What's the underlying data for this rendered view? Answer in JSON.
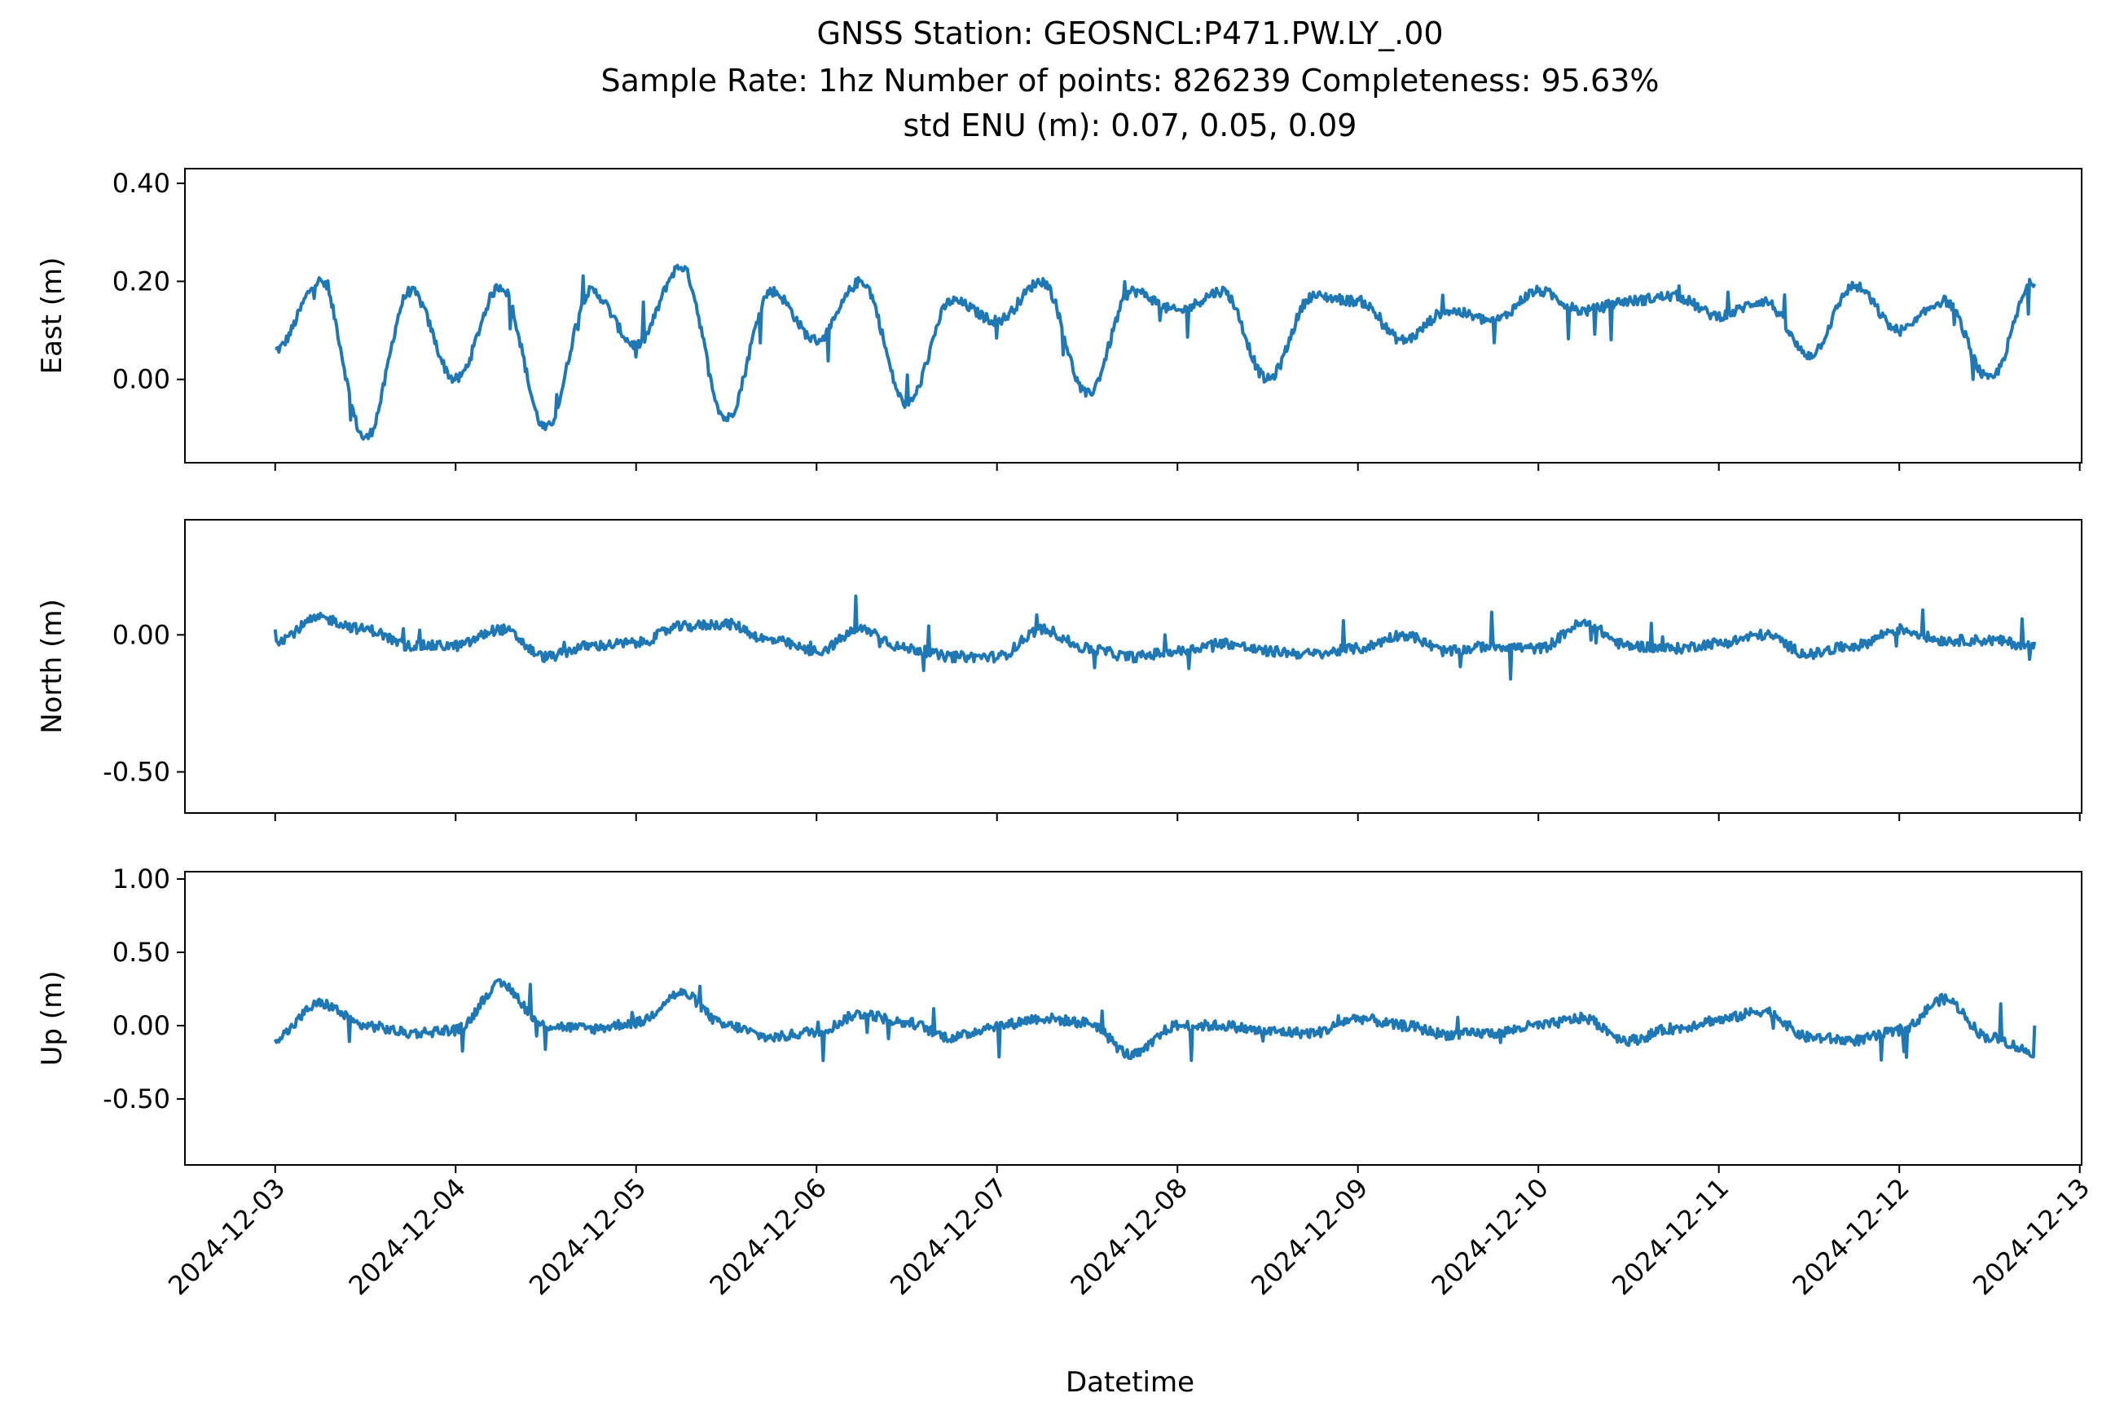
{
  "chart_data": {
    "type": "line",
    "title_lines": [
      "GNSS Station: GEOSNCL:P471.PW.LY_.00",
      "Sample Rate: 1hz   Number of points: 826239    Completeness:  95.63%",
      "std ENU (m):  0.07, 0.05, 0.09"
    ],
    "xlabel": "Datetime",
    "x_ticks": [
      "2024-12-03",
      "2024-12-04",
      "2024-12-05",
      "2024-12-06",
      "2024-12-07",
      "2024-12-08",
      "2024-12-09",
      "2024-12-10",
      "2024-12-11",
      "2024-12-12",
      "2024-12-13"
    ],
    "xlim": [
      "2024-12-02T12:00",
      "2024-12-13T00:15"
    ],
    "x_data_range": [
      "2024-12-03T00:00",
      "2024-12-12T18:00"
    ],
    "line_color": "#1f77b4",
    "grid": false,
    "legend": "none",
    "panels": [
      {
        "ylabel": "East (m)",
        "ylim": [
          -0.17,
          0.43
        ],
        "y_ticks": [
          {
            "value": 0.4,
            "label": "0.40"
          },
          {
            "value": 0.2,
            "label": "0.20"
          },
          {
            "value": 0.0,
            "label": "0.00"
          }
        ],
        "series": [
          {
            "x": [
              "2024-12-03T00:00",
              "2024-12-03T06:00",
              "2024-12-03T12:00",
              "2024-12-03T18:00",
              "2024-12-04T00:00",
              "2024-12-04T06:00",
              "2024-12-04T12:00",
              "2024-12-04T18:00",
              "2024-12-05T00:00",
              "2024-12-05T06:00",
              "2024-12-05T12:00",
              "2024-12-05T18:00",
              "2024-12-06T00:00",
              "2024-12-06T06:00",
              "2024-12-06T12:00",
              "2024-12-06T18:00",
              "2024-12-07T00:00",
              "2024-12-07T06:00",
              "2024-12-07T12:00",
              "2024-12-07T18:00",
              "2024-12-08T00:00",
              "2024-12-08T06:00",
              "2024-12-08T12:00",
              "2024-12-08T18:00",
              "2024-12-09T00:00",
              "2024-12-09T06:00",
              "2024-12-09T12:00",
              "2024-12-09T18:00",
              "2024-12-10T00:00",
              "2024-12-10T06:00",
              "2024-12-10T12:00",
              "2024-12-10T18:00",
              "2024-12-11T00:00",
              "2024-12-11T06:00",
              "2024-12-11T12:00",
              "2024-12-11T18:00",
              "2024-12-12T00:00",
              "2024-12-12T06:00",
              "2024-12-12T12:00",
              "2024-12-12T18:00"
            ],
            "y": [
              0.06,
              0.2,
              -0.12,
              0.18,
              0.0,
              0.19,
              -0.1,
              0.18,
              0.07,
              0.23,
              -0.08,
              0.18,
              0.08,
              0.2,
              -0.05,
              0.16,
              0.12,
              0.2,
              -0.03,
              0.18,
              0.14,
              0.18,
              0.0,
              0.17,
              0.16,
              0.08,
              0.14,
              0.12,
              0.18,
              0.14,
              0.16,
              0.17,
              0.13,
              0.16,
              0.05,
              0.19,
              0.1,
              0.16,
              0.0,
              0.2
            ]
          }
        ]
      },
      {
        "ylabel": "North (m)",
        "ylim": [
          -0.65,
          0.42
        ],
        "y_ticks": [
          {
            "value": 0.0,
            "label": "0.00"
          },
          {
            "value": -0.5,
            "label": "-0.50"
          }
        ],
        "series": [
          {
            "x": [
              "2024-12-03T00:00",
              "2024-12-03T06:00",
              "2024-12-03T12:00",
              "2024-12-03T18:00",
              "2024-12-04T00:00",
              "2024-12-04T06:00",
              "2024-12-04T12:00",
              "2024-12-04T18:00",
              "2024-12-05T00:00",
              "2024-12-05T06:00",
              "2024-12-05T12:00",
              "2024-12-05T18:00",
              "2024-12-06T00:00",
              "2024-12-06T06:00",
              "2024-12-06T12:00",
              "2024-12-06T18:00",
              "2024-12-07T00:00",
              "2024-12-07T06:00",
              "2024-12-07T12:00",
              "2024-12-07T18:00",
              "2024-12-08T00:00",
              "2024-12-08T06:00",
              "2024-12-08T12:00",
              "2024-12-08T18:00",
              "2024-12-09T00:00",
              "2024-12-09T06:00",
              "2024-12-09T12:00",
              "2024-12-09T18:00",
              "2024-12-10T00:00",
              "2024-12-10T06:00",
              "2024-12-10T12:00",
              "2024-12-10T18:00",
              "2024-12-11T00:00",
              "2024-12-11T06:00",
              "2024-12-11T12:00",
              "2024-12-11T18:00",
              "2024-12-12T00:00",
              "2024-12-12T06:00",
              "2024-12-12T12:00",
              "2024-12-12T18:00"
            ],
            "y": [
              -0.02,
              0.06,
              0.02,
              -0.04,
              -0.04,
              0.02,
              -0.08,
              -0.04,
              -0.03,
              0.03,
              0.04,
              -0.02,
              -0.06,
              0.02,
              -0.05,
              -0.08,
              -0.08,
              0.02,
              -0.05,
              -0.08,
              -0.06,
              -0.03,
              -0.06,
              -0.07,
              -0.05,
              0.0,
              -0.06,
              -0.04,
              -0.05,
              0.04,
              -0.04,
              -0.05,
              -0.03,
              0.0,
              -0.07,
              -0.04,
              0.02,
              -0.02,
              -0.02,
              -0.04
            ]
          }
        ]
      },
      {
        "ylabel": "Up (m)",
        "ylim": [
          -0.95,
          1.05
        ],
        "y_ticks": [
          {
            "value": 1.0,
            "label": "1.00"
          },
          {
            "value": 0.5,
            "label": "0.50"
          },
          {
            "value": 0.0,
            "label": "0.00"
          },
          {
            "value": -0.5,
            "label": "-0.50"
          }
        ],
        "series": [
          {
            "x": [
              "2024-12-03T00:00",
              "2024-12-03T06:00",
              "2024-12-03T12:00",
              "2024-12-03T18:00",
              "2024-12-04T00:00",
              "2024-12-04T06:00",
              "2024-12-04T12:00",
              "2024-12-04T18:00",
              "2024-12-05T00:00",
              "2024-12-05T06:00",
              "2024-12-05T12:00",
              "2024-12-05T18:00",
              "2024-12-06T00:00",
              "2024-12-06T06:00",
              "2024-12-06T12:00",
              "2024-12-06T18:00",
              "2024-12-07T00:00",
              "2024-12-07T06:00",
              "2024-12-07T12:00",
              "2024-12-07T18:00",
              "2024-12-08T00:00",
              "2024-12-08T06:00",
              "2024-12-08T12:00",
              "2024-12-08T18:00",
              "2024-12-09T00:00",
              "2024-12-09T06:00",
              "2024-12-09T12:00",
              "2024-12-09T18:00",
              "2024-12-10T00:00",
              "2024-12-10T06:00",
              "2024-12-10T12:00",
              "2024-12-10T18:00",
              "2024-12-11T00:00",
              "2024-12-11T06:00",
              "2024-12-11T12:00",
              "2024-12-11T18:00",
              "2024-12-12T00:00",
              "2024-12-12T06:00",
              "2024-12-12T12:00",
              "2024-12-12T18:00"
            ],
            "y": [
              -0.08,
              0.15,
              0.0,
              -0.05,
              -0.03,
              0.28,
              0.0,
              -0.02,
              0.02,
              0.22,
              0.0,
              -0.08,
              -0.04,
              0.08,
              0.02,
              -0.08,
              0.0,
              0.05,
              0.02,
              -0.2,
              0.0,
              0.0,
              -0.04,
              -0.05,
              0.05,
              0.0,
              -0.06,
              -0.05,
              0.0,
              0.05,
              -0.1,
              -0.02,
              0.04,
              0.1,
              -0.08,
              -0.1,
              -0.04,
              0.18,
              -0.08,
              -0.18
            ]
          }
        ]
      }
    ]
  }
}
